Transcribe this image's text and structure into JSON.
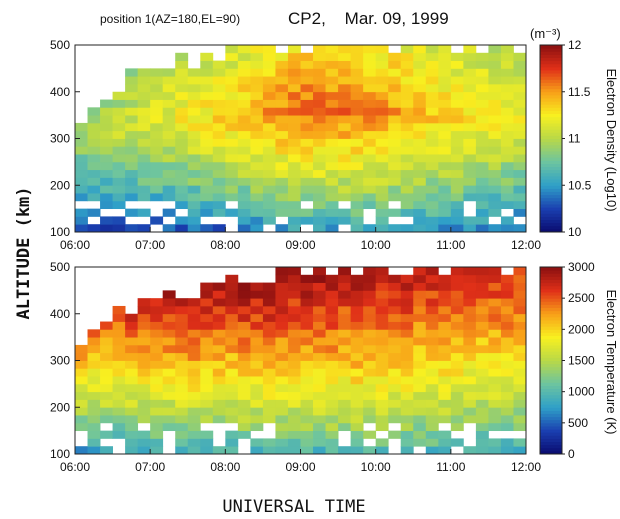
{
  "header": {
    "position_label": "position 1(AZ=180,EL=90)",
    "title": "CP2,    Mar. 09, 1999"
  },
  "axes": {
    "ylabel": "ALTITUDE (km)",
    "xlabel": "UNIVERSAL TIME"
  },
  "chart_data": [
    {
      "type": "heatmap",
      "title": "",
      "xlabel": "",
      "ylabel": "ALTITUDE (km)",
      "x_ticks": [
        "06:00",
        "07:00",
        "08:00",
        "09:00",
        "10:00",
        "11:00",
        "12:00"
      ],
      "y_ticks": [
        "100",
        "200",
        "300",
        "400",
        "500"
      ],
      "xlim": [
        "06:00",
        "12:00"
      ],
      "ylim": [
        100,
        500
      ],
      "colorbar": {
        "label": "Electron Density (Log10)",
        "unit": "(m⁻³)",
        "ticks": [
          "10",
          "10.5",
          "11",
          "11.5",
          "12"
        ],
        "range": [
          10,
          12
        ]
      },
      "colormap": [
        "#0a0a6e",
        "#1a3fb0",
        "#2fa0c8",
        "#6cc4a0",
        "#b8d848",
        "#f8f020",
        "#f8a018",
        "#e03018",
        "#8a1010"
      ],
      "grid_cols": 36,
      "grid_rows": 24,
      "profile_by_hour": [
        {
          "time": "06:00",
          "top_km": 340,
          "bottom_value": 10.25,
          "peak_value": 10.9,
          "peak_km": 300
        },
        {
          "time": "07:00",
          "top_km": 460,
          "bottom_value": 10.2,
          "peak_value": 11.15,
          "peak_km": 330
        },
        {
          "time": "08:00",
          "top_km": 480,
          "bottom_value": 10.3,
          "peak_value": 11.35,
          "peak_km": 340
        },
        {
          "time": "09:00",
          "top_km": 500,
          "bottom_value": 10.45,
          "peak_value": 11.65,
          "peak_km": 360
        },
        {
          "time": "10:00",
          "top_km": 500,
          "bottom_value": 10.5,
          "peak_value": 11.55,
          "peak_km": 360
        },
        {
          "time": "11:00",
          "top_km": 500,
          "bottom_value": 10.4,
          "peak_value": 11.35,
          "peak_km": 350
        },
        {
          "time": "12:00",
          "top_km": 500,
          "bottom_value": 10.3,
          "peak_value": 11.2,
          "peak_km": 340
        }
      ]
    },
    {
      "type": "heatmap",
      "title": "",
      "xlabel": "UNIVERSAL TIME",
      "ylabel": "ALTITUDE (km)",
      "x_ticks": [
        "06:00",
        "07:00",
        "08:00",
        "09:00",
        "10:00",
        "11:00",
        "12:00"
      ],
      "y_ticks": [
        "100",
        "200",
        "300",
        "400",
        "500"
      ],
      "xlim": [
        "06:00",
        "12:00"
      ],
      "ylim": [
        100,
        500
      ],
      "colorbar": {
        "label": "Electron Temperature (K)",
        "unit": "",
        "ticks": [
          "0",
          "500",
          "1000",
          "1500",
          "2000",
          "2500",
          "3000"
        ],
        "range": [
          0,
          3000
        ]
      },
      "colormap": [
        "#0a0a6e",
        "#1a3fb0",
        "#2fa0c8",
        "#6cc4a0",
        "#b8d848",
        "#f8f020",
        "#f8a018",
        "#e03018",
        "#8a1010"
      ],
      "grid_cols": 36,
      "grid_rows": 24,
      "profile_by_hour": [
        {
          "time": "06:00",
          "top_km": 340,
          "bottom_value": 600,
          "top_value": 2300
        },
        {
          "time": "07:00",
          "top_km": 440,
          "bottom_value": 700,
          "top_value": 2800
        },
        {
          "time": "08:00",
          "top_km": 460,
          "bottom_value": 800,
          "top_value": 2900
        },
        {
          "time": "09:00",
          "top_km": 500,
          "bottom_value": 850,
          "top_value": 3000
        },
        {
          "time": "10:00",
          "top_km": 500,
          "bottom_value": 900,
          "top_value": 2900
        },
        {
          "time": "11:00",
          "top_km": 500,
          "bottom_value": 800,
          "top_value": 2800
        },
        {
          "time": "12:00",
          "top_km": 500,
          "bottom_value": 750,
          "top_value": 2700
        }
      ]
    }
  ]
}
